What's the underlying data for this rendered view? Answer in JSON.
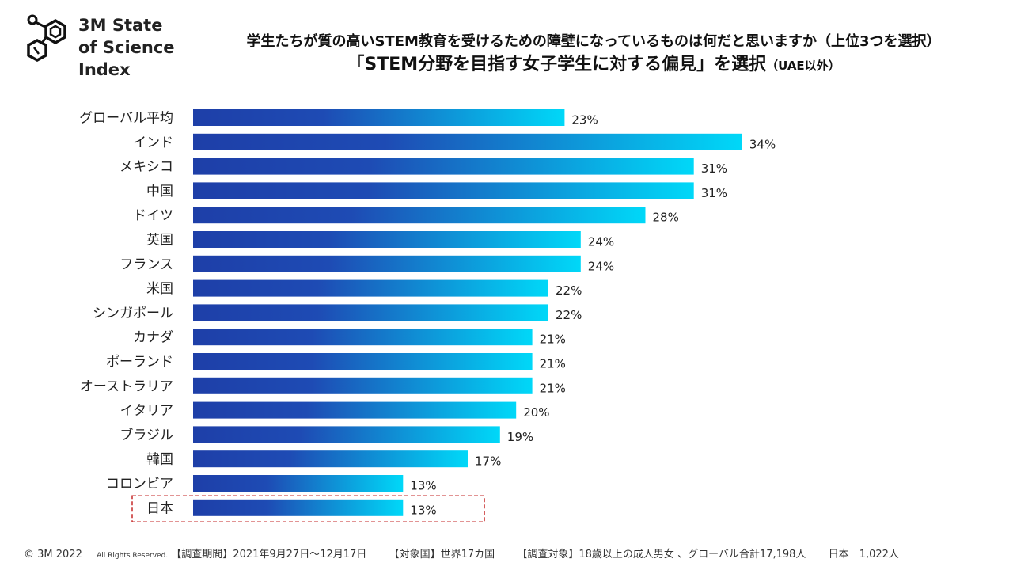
{
  "logo": {
    "lines": [
      "3M State",
      "of Science",
      "Index"
    ],
    "icon": "molecule-icon"
  },
  "header": {
    "title": "学生たちが質の高いSTEM教育を受けるための障壁になっているものは何だと思いますか（上位3つを選択）",
    "subtitle": "「STEM分野を目指す女子学生に対する偏見」を選択",
    "subtitle_note": "（UAE以外）"
  },
  "chart_data": {
    "type": "bar",
    "orientation": "horizontal",
    "categories": [
      "グローバル平均",
      "インド",
      "メキシコ",
      "中国",
      "ドイツ",
      "英国",
      "フランス",
      "米国",
      "シンガポール",
      "カナダ",
      "ポーランド",
      "オーストラリア",
      "イタリア",
      "ブラジル",
      "韓国",
      "コロンビア",
      "日本"
    ],
    "values": [
      23,
      34,
      31,
      31,
      28,
      24,
      24,
      22,
      22,
      21,
      21,
      21,
      20,
      19,
      17,
      13,
      13
    ],
    "value_labels": [
      "23%",
      "34%",
      "31%",
      "31%",
      "28%",
      "24%",
      "24%",
      "22%",
      "22%",
      "21%",
      "21%",
      "21%",
      "20%",
      "19%",
      "17%",
      "13%",
      "13%"
    ],
    "unit": "%",
    "highlight": "日本",
    "colors": {
      "bar_start": "#1e3fa8",
      "bar_end": "#00d8f8",
      "highlight_box": "#c62828"
    }
  },
  "footer": {
    "copyright": "© 3M  2022",
    "rights": "All Rights Reserved.",
    "period": "【調査期間】2021年9月27日～12月17日",
    "countries": "【対象国】世界17カ国",
    "target": "【調査対象】18歳以上の成人男女 、グローバル合計17,198人",
    "japan": "日本　1,022人"
  }
}
